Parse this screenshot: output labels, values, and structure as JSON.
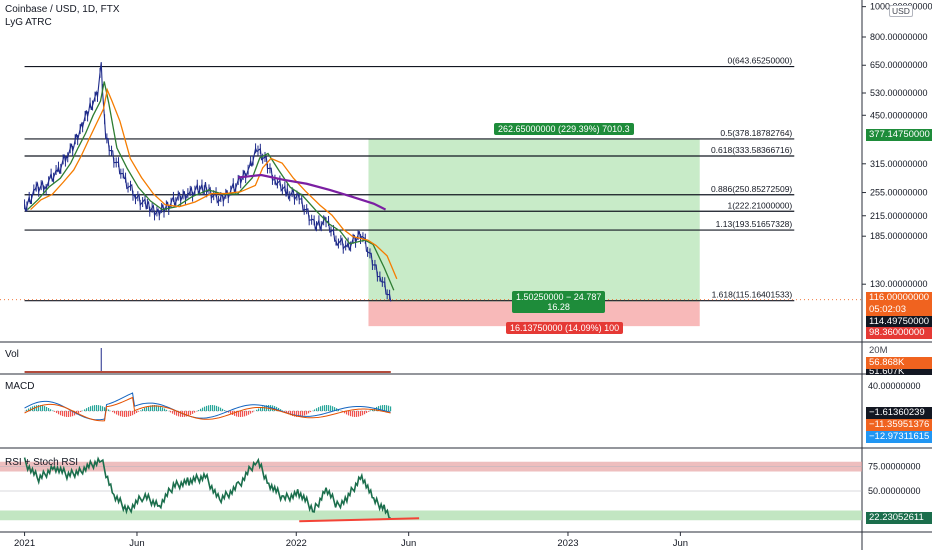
{
  "header": {
    "symbol": "Coinbase / USD, 1D, FTX",
    "indicator": "LyG ATRC",
    "currency": "USD"
  },
  "panes": {
    "vol_label": "Vol",
    "macd_label": "MACD",
    "rsi_label": "RSI + Stoch RSI"
  },
  "trade": {
    "target_label": "262.65000000 (229.39%) 7010.3",
    "ratio_label_1": "1.50250000 − 24.787",
    "ratio_label_2": "16.28",
    "stop_label": "16.13750000 (14.09%) 100"
  },
  "price_tags": {
    "target": "377.14750000",
    "current": "116.00000000",
    "countdown": "05:02:03",
    "entry": "114.49750000",
    "stop": "98.36000000",
    "vol_1": "56.868K",
    "vol_2": "51.607K",
    "vol_axis": "20M",
    "macd_1": "−1.61360239",
    "macd_2": "−11.35951376",
    "macd_3": "−12.97311615",
    "rsi": "22.23052611"
  },
  "colors": {
    "up": "#26a69a",
    "down": "#ef5350",
    "candle": "#1e2a8a",
    "target_zone": "#c8ebc8",
    "stop_zone": "#f8b9b9",
    "ema_fast": "#2e7d32",
    "ema_mid": "#f57c00",
    "ema_slow": "#7b1fa2",
    "rsi_line": "#1b6e4c",
    "macd_signal": "#e65100",
    "macd_line": "#1565c0",
    "div_line": "#f44336"
  },
  "chart_data": {
    "type": "line",
    "price_axis": {
      "scale": "log",
      "ticks": [
        {
          "value": 1000,
          "label": "1000.00000000"
        },
        {
          "value": 800,
          "label": "800.00000000"
        },
        {
          "value": 650,
          "label": "650.00000000"
        },
        {
          "value": 530,
          "label": "530.00000000"
        },
        {
          "value": 450,
          "label": "450.00000000"
        },
        {
          "value": 315,
          "label": "315.00000000"
        },
        {
          "value": 255,
          "label": "255.00000000"
        },
        {
          "value": 215,
          "label": "215.00000000"
        },
        {
          "value": 185,
          "label": "185.00000000"
        },
        {
          "value": 130,
          "label": "130.00000000"
        }
      ],
      "range": [
        85,
        1050
      ]
    },
    "time_axis": {
      "ticks": [
        {
          "date": "2021-01-01",
          "label": "2021"
        },
        {
          "date": "2021-06-01",
          "label": "Jun"
        },
        {
          "date": "2022-01-01",
          "label": "2022"
        },
        {
          "date": "2022-06-01",
          "label": "Jun"
        },
        {
          "date": "2023-01-01",
          "label": "2023"
        },
        {
          "date": "2023-06-01",
          "label": "Jun"
        }
      ],
      "range": [
        "2020-11-29",
        "2024-01-31"
      ]
    },
    "fib_levels": [
      {
        "ratio": "0",
        "price": 643.6525,
        "label": "0(643.65250000)"
      },
      {
        "ratio": "0.5",
        "price": 378.18782764,
        "label": "0.5(378.18782764)"
      },
      {
        "ratio": "0.618",
        "price": 333.58366716,
        "label": "0.618(333.58366716)"
      },
      {
        "ratio": "0.886",
        "price": 250.85272509,
        "label": "0.886(250.85272509)"
      },
      {
        "ratio": "1",
        "price": 222.21,
        "label": "1(222.21000000)"
      },
      {
        "ratio": "1.13",
        "price": 193.51657328,
        "label": "1.13(193.51657328)"
      },
      {
        "ratio": "1.618",
        "price": 115.16401533,
        "label": "1.618(115.16401533)"
      }
    ],
    "fib_start": "2021-01-01",
    "fib_end": "2023-11-01",
    "position": {
      "start": "2022-04-08",
      "end": "2023-06-27",
      "entry": 114.4975,
      "target": 377.1475,
      "stop": 98.36
    },
    "price_series": [
      {
        "date": "2021-01-01",
        "close": 225
      },
      {
        "date": "2021-01-15",
        "close": 260
      },
      {
        "date": "2021-01-30",
        "close": 272
      },
      {
        "date": "2021-02-14",
        "close": 295
      },
      {
        "date": "2021-02-28",
        "close": 340
      },
      {
        "date": "2021-03-10",
        "close": 370
      },
      {
        "date": "2021-03-20",
        "close": 420
      },
      {
        "date": "2021-03-30",
        "close": 480
      },
      {
        "date": "2021-04-09",
        "close": 520
      },
      {
        "date": "2021-04-14",
        "close": 640
      },
      {
        "date": "2021-04-20",
        "close": 380
      },
      {
        "date": "2021-05-01",
        "close": 330
      },
      {
        "date": "2021-05-15",
        "close": 280
      },
      {
        "date": "2021-05-30",
        "close": 250
      },
      {
        "date": "2021-06-15",
        "close": 230
      },
      {
        "date": "2021-07-01",
        "close": 220
      },
      {
        "date": "2021-07-20",
        "close": 240
      },
      {
        "date": "2021-08-10",
        "close": 255
      },
      {
        "date": "2021-09-01",
        "close": 265
      },
      {
        "date": "2021-09-20",
        "close": 240
      },
      {
        "date": "2021-10-10",
        "close": 265
      },
      {
        "date": "2021-10-30",
        "close": 305
      },
      {
        "date": "2021-11-09",
        "close": 355
      },
      {
        "date": "2021-11-20",
        "close": 325
      },
      {
        "date": "2021-12-05",
        "close": 275
      },
      {
        "date": "2021-12-20",
        "close": 255
      },
      {
        "date": "2022-01-05",
        "close": 245
      },
      {
        "date": "2022-01-25",
        "close": 200
      },
      {
        "date": "2022-02-10",
        "close": 205
      },
      {
        "date": "2022-02-25",
        "close": 180
      },
      {
        "date": "2022-03-10",
        "close": 170
      },
      {
        "date": "2022-03-30",
        "close": 190
      },
      {
        "date": "2022-04-10",
        "close": 160
      },
      {
        "date": "2022-04-25",
        "close": 135
      },
      {
        "date": "2022-05-08",
        "close": 114.5
      }
    ],
    "ema_slow_series": [
      {
        "date": "2021-10-15",
        "value": 285
      },
      {
        "date": "2021-11-15",
        "value": 290
      },
      {
        "date": "2021-12-15",
        "value": 280
      },
      {
        "date": "2022-01-15",
        "value": 272
      },
      {
        "date": "2022-02-15",
        "value": 260
      },
      {
        "date": "2022-03-15",
        "value": 248
      },
      {
        "date": "2022-04-15",
        "value": 235
      },
      {
        "date": "2022-05-01",
        "value": 225
      }
    ],
    "volume": {
      "axis_max_label": "20M",
      "spike_date": "2021-04-14"
    },
    "macd": {
      "axis_label": "40.00000000",
      "values": [
        -1.6136,
        -11.35951376,
        -12.97311615
      ]
    },
    "rsi": {
      "ticks": [
        {
          "value": 75,
          "label": "75.00000000"
        },
        {
          "value": 50,
          "label": "50.00000000"
        }
      ],
      "overbought_band": [
        70,
        80
      ],
      "oversold_band": [
        20,
        30
      ],
      "current": 22.23052611,
      "series": [
        {
          "date": "2021-01-01",
          "value": 80
        },
        {
          "date": "2021-01-20",
          "value": 62
        },
        {
          "date": "2021-02-10",
          "value": 75
        },
        {
          "date": "2021-03-01",
          "value": 66
        },
        {
          "date": "2021-03-20",
          "value": 72
        },
        {
          "date": "2021-04-14",
          "value": 82
        },
        {
          "date": "2021-05-01",
          "value": 45
        },
        {
          "date": "2021-05-20",
          "value": 30
        },
        {
          "date": "2021-06-10",
          "value": 45
        },
        {
          "date": "2021-07-01",
          "value": 35
        },
        {
          "date": "2021-07-20",
          "value": 55
        },
        {
          "date": "2021-08-10",
          "value": 60
        },
        {
          "date": "2021-09-01",
          "value": 65
        },
        {
          "date": "2021-09-20",
          "value": 40
        },
        {
          "date": "2021-10-15",
          "value": 55
        },
        {
          "date": "2021-11-09",
          "value": 82
        },
        {
          "date": "2021-11-25",
          "value": 58
        },
        {
          "date": "2021-12-15",
          "value": 42
        },
        {
          "date": "2022-01-05",
          "value": 48
        },
        {
          "date": "2022-01-25",
          "value": 30
        },
        {
          "date": "2022-02-10",
          "value": 52
        },
        {
          "date": "2022-02-25",
          "value": 35
        },
        {
          "date": "2022-03-10",
          "value": 42
        },
        {
          "date": "2022-03-30",
          "value": 66
        },
        {
          "date": "2022-04-15",
          "value": 40
        },
        {
          "date": "2022-05-01",
          "value": 32
        },
        {
          "date": "2022-05-08",
          "value": 22
        }
      ],
      "divergence": [
        {
          "date": "2022-01-05",
          "value": 19
        },
        {
          "date": "2022-06-15",
          "value": 22
        }
      ]
    }
  }
}
